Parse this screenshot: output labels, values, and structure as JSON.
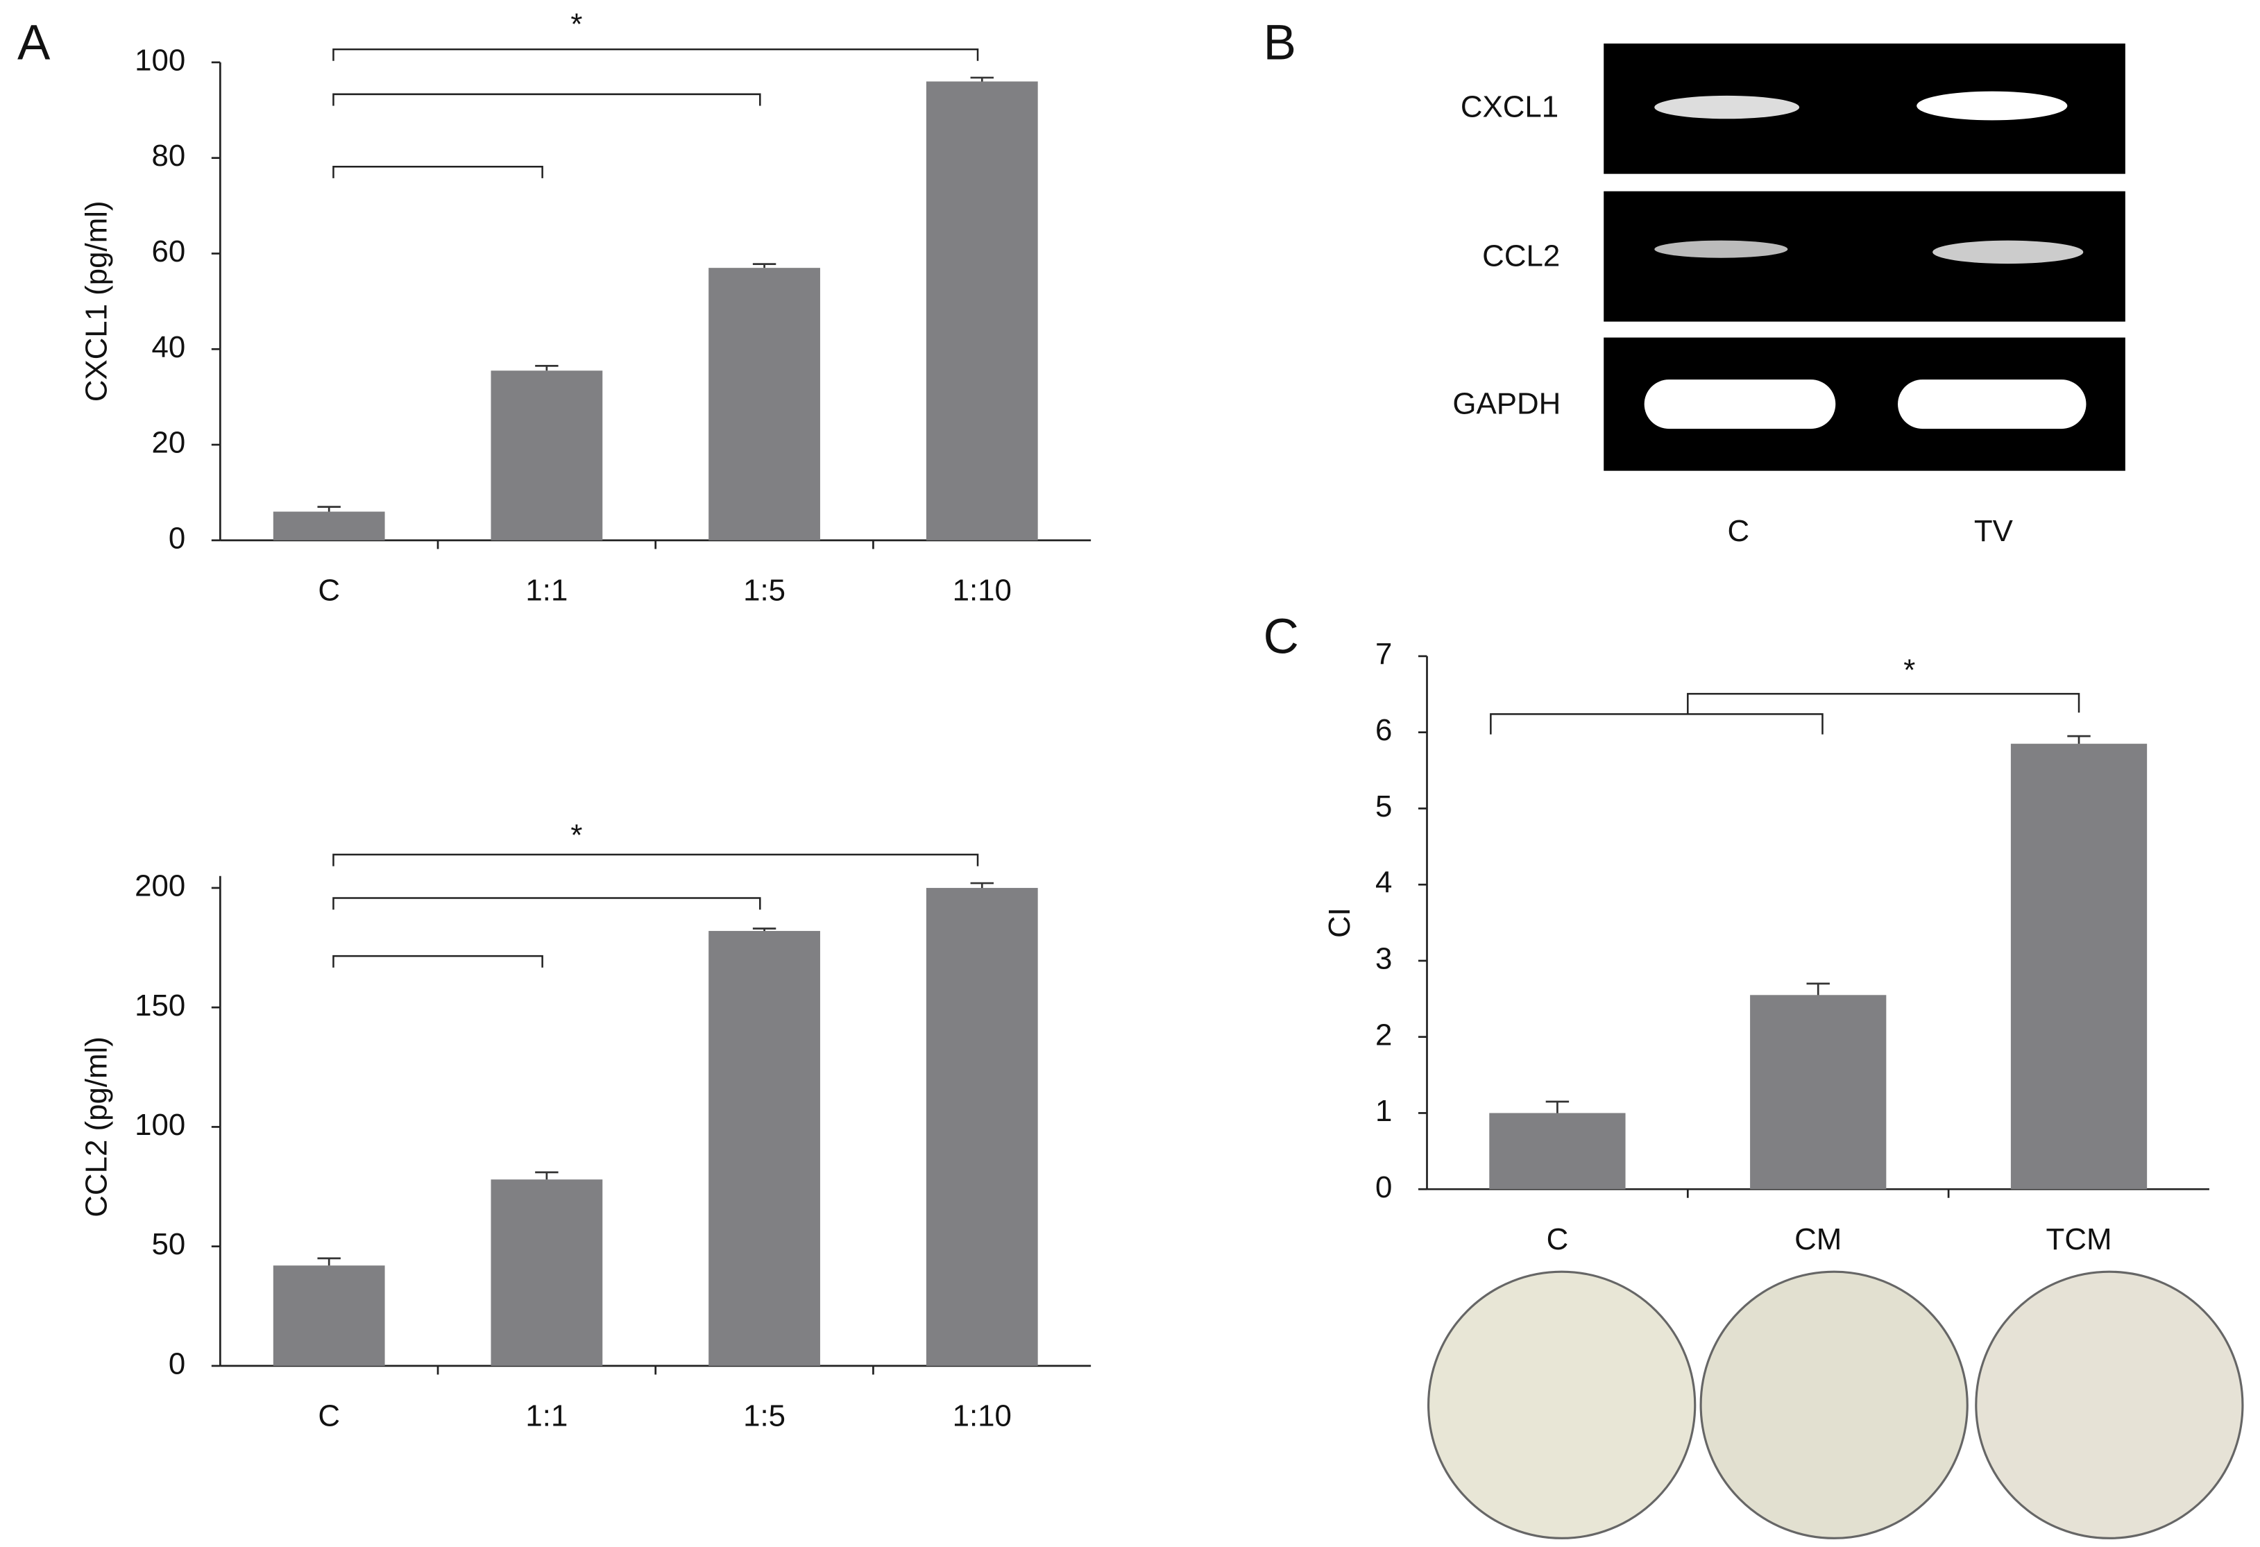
{
  "panel_labels": [
    "A",
    "B",
    "C"
  ],
  "gel": {
    "rows": [
      "CXCL1",
      "CCL2",
      "GAPDH"
    ],
    "lanes": [
      "C",
      "TV"
    ]
  },
  "chart_data": [
    {
      "type": "bar",
      "y_label": "CXCL1 (pg/ml)",
      "annotation": "*",
      "categories": [
        "C",
        "1:1",
        "1:5",
        "1:10"
      ],
      "values": [
        6,
        35.5,
        57,
        96
      ],
      "errors": [
        1,
        1,
        0.8,
        0.8
      ],
      "color": "#808083",
      "ylim": [
        0,
        100
      ],
      "yticks": [
        0,
        20,
        40,
        60,
        80,
        100
      ]
    },
    {
      "type": "bar",
      "y_label": "CCL2 (pg/ml)",
      "annotation": "*",
      "categories": [
        "C",
        "1:1",
        "1:5",
        "1:10"
      ],
      "values": [
        42,
        78,
        182,
        200
      ],
      "errors": [
        3,
        3,
        1,
        2
      ],
      "color": "#808083",
      "ylim": [
        0,
        205
      ],
      "yticks": [
        0,
        50,
        100,
        150,
        200
      ]
    },
    {
      "type": "bar",
      "y_label": "CI",
      "annotation": "*",
      "categories": [
        "C",
        "CM",
        "TCM"
      ],
      "values": [
        1,
        2.55,
        5.85
      ],
      "errors": [
        0.15,
        0.15,
        0.1
      ],
      "color": "#808083",
      "ylim": [
        0,
        7
      ],
      "yticks": [
        0,
        1,
        2,
        3,
        4,
        5,
        6,
        7
      ]
    }
  ]
}
